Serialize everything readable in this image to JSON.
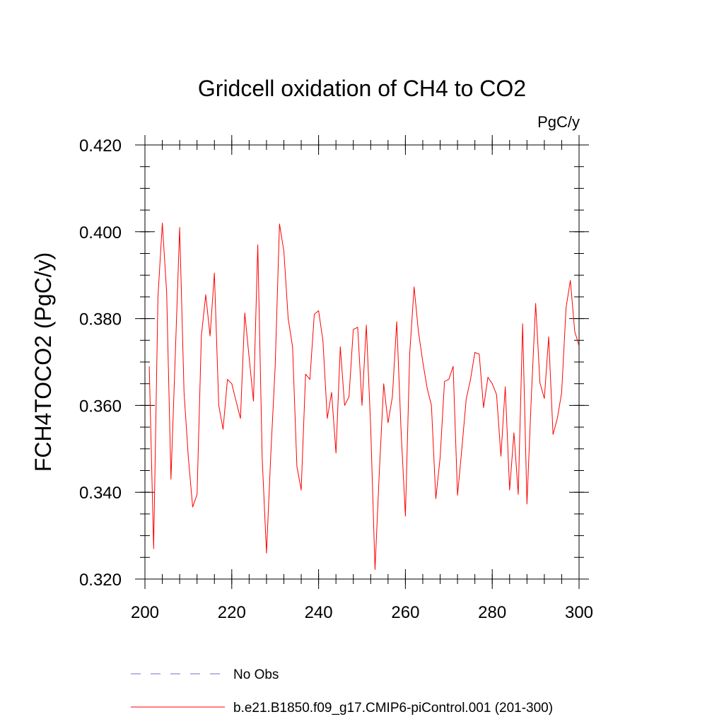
{
  "chart_data": {
    "type": "line",
    "title": "Gridcell oxidation of CH4 to CO2",
    "units": "PgC/y",
    "xlabel": "",
    "ylabel": "FCH4TOCO2  (PgC/y)",
    "xlim": [
      200,
      300
    ],
    "ylim": [
      0.32,
      0.42
    ],
    "x_ticks": [
      200,
      220,
      240,
      260,
      280,
      300
    ],
    "x_tick_labels": [
      "200",
      "220",
      "240",
      "260",
      "280",
      "300"
    ],
    "y_ticks": [
      0.32,
      0.34,
      0.36,
      0.38,
      0.4,
      0.42
    ],
    "y_tick_labels": [
      "0.320",
      "0.340",
      "0.360",
      "0.380",
      "0.400",
      "0.420"
    ],
    "x_minor_step": 4,
    "y_minor_step": 0.005,
    "legend": [
      {
        "label": "No Obs",
        "color": "#7070c0",
        "style": "dashed"
      },
      {
        "label": "b.e21.B1850.f09_g17.CMIP6-piControl.001 (201-300)",
        "color": "#ff0000",
        "style": "solid"
      }
    ],
    "series": [
      {
        "name": "b.e21.B1850.f09_g17.CMIP6-piControl.001 (201-300)",
        "color": "#ff0000",
        "x": [
          201,
          202,
          203,
          204,
          205,
          206,
          207,
          208,
          209,
          210,
          211,
          212,
          213,
          214,
          215,
          216,
          217,
          218,
          219,
          220,
          221,
          222,
          223,
          224,
          225,
          226,
          227,
          228,
          229,
          230,
          231,
          232,
          233,
          234,
          235,
          236,
          237,
          238,
          239,
          240,
          241,
          242,
          243,
          244,
          245,
          246,
          247,
          248,
          249,
          250,
          251,
          252,
          253,
          254,
          255,
          256,
          257,
          258,
          259,
          260,
          261,
          262,
          263,
          264,
          265,
          266,
          267,
          268,
          269,
          270,
          271,
          272,
          273,
          274,
          275,
          276,
          277,
          278,
          279,
          280,
          281,
          282,
          283,
          284,
          285,
          286,
          287,
          288,
          289,
          290,
          291,
          292,
          293,
          294,
          295,
          296,
          297,
          298,
          299,
          300
        ],
        "y": [
          0.369,
          0.327,
          0.385,
          0.402,
          0.386,
          0.343,
          0.372,
          0.401,
          0.363,
          0.348,
          0.3366,
          0.3395,
          0.376,
          0.3855,
          0.376,
          0.3905,
          0.36,
          0.3545,
          0.366,
          0.365,
          0.361,
          0.357,
          0.3813,
          0.371,
          0.361,
          0.397,
          0.348,
          0.326,
          0.349,
          0.369,
          0.4018,
          0.3955,
          0.38,
          0.3735,
          0.346,
          0.3405,
          0.3672,
          0.366,
          0.381,
          0.3818,
          0.375,
          0.357,
          0.363,
          0.349,
          0.3735,
          0.36,
          0.362,
          0.3775,
          0.378,
          0.36,
          0.3785,
          0.355,
          0.3222,
          0.345,
          0.365,
          0.356,
          0.362,
          0.3793,
          0.354,
          0.3345,
          0.372,
          0.3873,
          0.377,
          0.37,
          0.364,
          0.36,
          0.3385,
          0.348,
          0.3655,
          0.366,
          0.369,
          0.3393,
          0.35,
          0.3615,
          0.366,
          0.3722,
          0.3718,
          0.3595,
          0.3665,
          0.365,
          0.3625,
          0.3483,
          0.3643,
          0.3405,
          0.3537,
          0.3395,
          0.3788,
          0.3373,
          0.362,
          0.3835,
          0.3652,
          0.3616,
          0.3758,
          0.3533,
          0.357,
          0.363,
          0.3825,
          0.3888,
          0.377,
          0.3738
        ]
      }
    ]
  }
}
